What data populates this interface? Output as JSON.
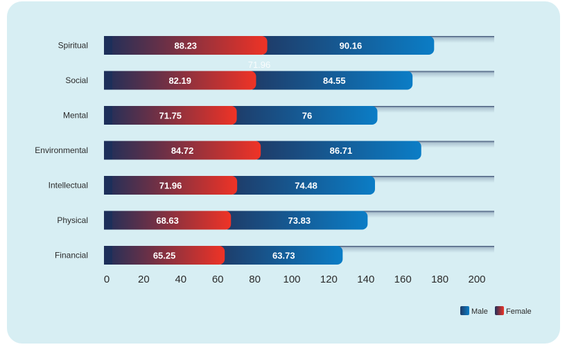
{
  "chart_data": {
    "type": "bar",
    "orientation": "horizontal",
    "stacked": true,
    "categories": [
      "Spiritual",
      "Social",
      "Mental",
      "Environmental",
      "Intellectual",
      "Physical",
      "Financial"
    ],
    "series": [
      {
        "name": "Female",
        "values": [
          88.23,
          82.19,
          71.75,
          84.72,
          71.96,
          68.63,
          65.25
        ]
      },
      {
        "name": "Male",
        "values": [
          90.16,
          84.55,
          76,
          86.71,
          74.48,
          73.83,
          63.73
        ]
      }
    ],
    "stray_label": "71.96",
    "xlim": [
      0,
      200
    ],
    "xticks": [
      0,
      20,
      40,
      60,
      80,
      100,
      120,
      140,
      160,
      180,
      200
    ],
    "legend": {
      "position": "bottom-right",
      "items": [
        "Male",
        "Female"
      ]
    },
    "colors": {
      "female_start": "#1d2f5a",
      "female_end": "#ef3326",
      "male_start": "#1f3a66",
      "male_end": "#0b7dc6",
      "track": "#2b3f66",
      "background": "#d7eef3"
    }
  }
}
